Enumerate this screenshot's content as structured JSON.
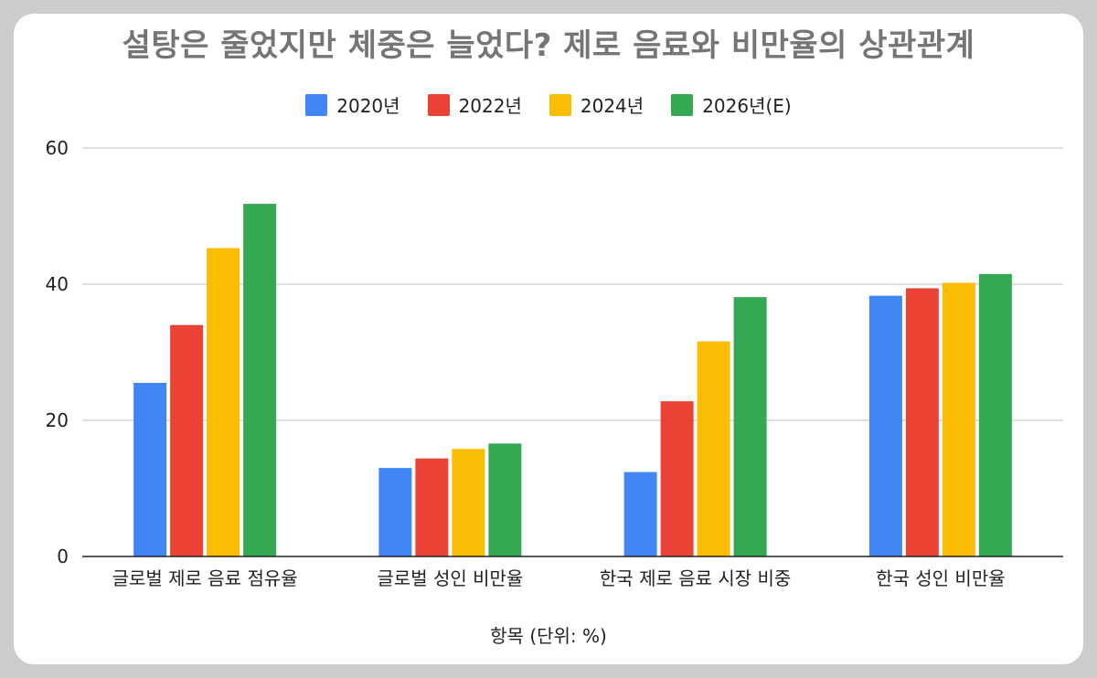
{
  "chart_data": {
    "type": "bar",
    "title": "설탕은 줄었지만 체중은 늘었다? 제로 음료와 비만율의 상관관계",
    "xlabel": "항목 (단위: %)",
    "ylabel": "",
    "ylim": [
      0,
      60
    ],
    "yticks": [
      0,
      20,
      40,
      60
    ],
    "grid": true,
    "legend_position": "top",
    "categories": [
      "글로벌 제로 음료 점유율",
      "글로벌 성인 비만율",
      "한국 제로 음료 시장 비중",
      "한국 성인 비만율"
    ],
    "series": [
      {
        "name": "2020년",
        "color": "#4285f4",
        "values": [
          25.5,
          13.0,
          12.4,
          38.3
        ]
      },
      {
        "name": "2022년",
        "color": "#ea4335",
        "values": [
          34.0,
          14.4,
          22.8,
          39.4
        ]
      },
      {
        "name": "2024년",
        "color": "#fbbc04",
        "values": [
          45.3,
          15.8,
          31.6,
          40.2
        ]
      },
      {
        "name": "2026년(E)",
        "color": "#34a853",
        "values": [
          51.8,
          16.6,
          38.1,
          41.5
        ]
      }
    ]
  }
}
